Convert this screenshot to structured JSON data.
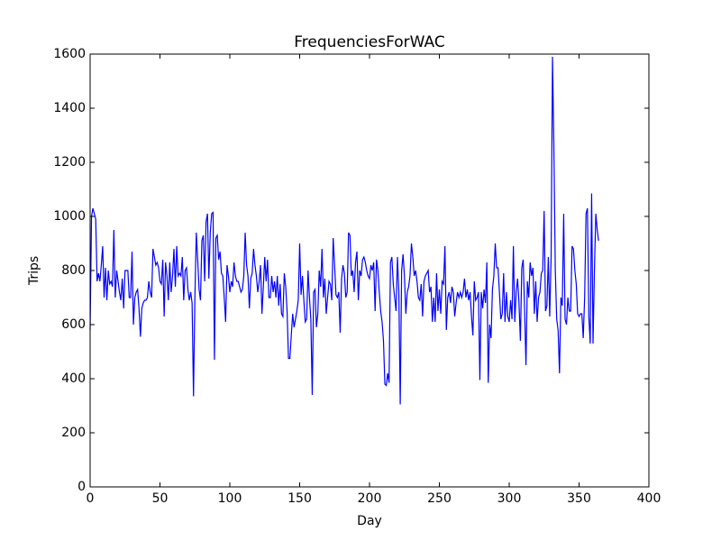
{
  "chart_data": {
    "type": "line",
    "title": "FrequenciesForWAC",
    "x_label": "Day",
    "y_label": "Trips",
    "xlim": [
      0,
      400
    ],
    "xticks": [
      0,
      50,
      100,
      150,
      200,
      250,
      300,
      350,
      400
    ],
    "ylim": [
      0,
      1600
    ],
    "yticks": [
      0,
      200,
      400,
      600,
      800,
      1000,
      1200,
      1400,
      1600
    ],
    "grid": false,
    "x": [
      0,
      1,
      2,
      3,
      4,
      5,
      6,
      7,
      8,
      9,
      10,
      11,
      12,
      13,
      14,
      15,
      16,
      17,
      18,
      19,
      20,
      21,
      22,
      23,
      24,
      25,
      26,
      27,
      28,
      29,
      30,
      31,
      32,
      33,
      34,
      35,
      36,
      37,
      38,
      39,
      40,
      41,
      42,
      43,
      44,
      45,
      46,
      47,
      48,
      49,
      50,
      51,
      52,
      53,
      54,
      55,
      56,
      57,
      58,
      59,
      60,
      61,
      62,
      63,
      64,
      65,
      66,
      67,
      68,
      69,
      70,
      71,
      72,
      73,
      74,
      75,
      76,
      77,
      78,
      79,
      80,
      81,
      82,
      83,
      84,
      85,
      86,
      87,
      88,
      89,
      90,
      91,
      92,
      93,
      94,
      95,
      96,
      97,
      98,
      99,
      100,
      101,
      102,
      103,
      104,
      105,
      106,
      107,
      108,
      109,
      110,
      111,
      112,
      113,
      114,
      115,
      116,
      117,
      118,
      119,
      120,
      121,
      122,
      123,
      124,
      125,
      126,
      127,
      128,
      129,
      130,
      131,
      132,
      133,
      134,
      135,
      136,
      137,
      138,
      139,
      140,
      141,
      142,
      143,
      144,
      145,
      146,
      147,
      148,
      149,
      150,
      151,
      152,
      153,
      154,
      155,
      156,
      157,
      158,
      159,
      160,
      161,
      162,
      163,
      164,
      165,
      166,
      167,
      168,
      169,
      170,
      171,
      172,
      173,
      174,
      175,
      176,
      177,
      178,
      179,
      180,
      181,
      182,
      183,
      184,
      185,
      186,
      187,
      188,
      189,
      190,
      191,
      192,
      193,
      194,
      195,
      196,
      197,
      198,
      199,
      200,
      201,
      202,
      203,
      204,
      205,
      206,
      207,
      208,
      209,
      210,
      211,
      212,
      213,
      214,
      215,
      216,
      217,
      218,
      219,
      220,
      221,
      222,
      223,
      224,
      225,
      226,
      227,
      228,
      229,
      230,
      231,
      232,
      233,
      234,
      235,
      236,
      237,
      238,
      239,
      240,
      241,
      242,
      243,
      244,
      245,
      246,
      247,
      248,
      249,
      250,
      251,
      252,
      253,
      254,
      255,
      256,
      257,
      258,
      259,
      260,
      261,
      262,
      263,
      264,
      265,
      266,
      267,
      268,
      269,
      270,
      271,
      272,
      273,
      274,
      275,
      276,
      277,
      278,
      279,
      280,
      281,
      282,
      283,
      284,
      285,
      286,
      287,
      288,
      289,
      290,
      291,
      292,
      293,
      294,
      295,
      296,
      297,
      298,
      299,
      300,
      301,
      302,
      303,
      304,
      305,
      306,
      307,
      308,
      309,
      310,
      311,
      312,
      313,
      314,
      315,
      316,
      317,
      318,
      319,
      320,
      321,
      322,
      323,
      324,
      325,
      326,
      327,
      328,
      329,
      330,
      331,
      332,
      333,
      334,
      335,
      336,
      337,
      338,
      339,
      340,
      341,
      342,
      343,
      344,
      345,
      346,
      347,
      348,
      349,
      350,
      351,
      352,
      353,
      354,
      355,
      356,
      357,
      358,
      359,
      360,
      361,
      362,
      363,
      364
    ],
    "series": [
      {
        "color": "#0000ff",
        "values": [
          580,
          1000,
          1030,
          1010,
          990,
          760,
          790,
          760,
          820,
          890,
          700,
          810,
          690,
          800,
          750,
          760,
          740,
          950,
          700,
          800,
          760,
          720,
          690,
          770,
          660,
          800,
          800,
          800,
          700,
          700,
          870,
          600,
          700,
          720,
          730,
          660,
          555,
          660,
          680,
          690,
          690,
          700,
          760,
          720,
          700,
          880,
          850,
          820,
          830,
          810,
          760,
          750,
          840,
          630,
          830,
          780,
          690,
          830,
          720,
          780,
          880,
          740,
          890,
          780,
          790,
          780,
          850,
          690,
          800,
          810,
          730,
          690,
          720,
          680,
          335,
          700,
          940,
          840,
          730,
          690,
          910,
          930,
          760,
          980,
          1010,
          770,
          940,
          1010,
          1015,
          470,
          920,
          930,
          840,
          870,
          790,
          780,
          700,
          610,
          820,
          780,
          720,
          760,
          740,
          830,
          780,
          760,
          760,
          740,
          720,
          730,
          780,
          940,
          820,
          780,
          660,
          770,
          790,
          880,
          820,
          780,
          720,
          760,
          820,
          640,
          740,
          850,
          760,
          840,
          700,
          700,
          780,
          720,
          760,
          700,
          780,
          670,
          750,
          640,
          630,
          790,
          740,
          650,
          475,
          475,
          560,
          640,
          590,
          620,
          650,
          690,
          900,
          710,
          780,
          690,
          610,
          620,
          800,
          700,
          620,
          340,
          720,
          730,
          590,
          640,
          800,
          740,
          880,
          700,
          770,
          640,
          700,
          760,
          750,
          690,
          920,
          820,
          710,
          700,
          720,
          570,
          770,
          820,
          790,
          700,
          720,
          940,
          930,
          780,
          800,
          720,
          830,
          870,
          690,
          800,
          780,
          840,
          850,
          830,
          800,
          780,
          770,
          820,
          800,
          830,
          650,
          840,
          800,
          720,
          650,
          610,
          540,
          380,
          375,
          420,
          385,
          830,
          850,
          750,
          700,
          650,
          850,
          720,
          305,
          800,
          860,
          780,
          640,
          720,
          740,
          780,
          900,
          850,
          780,
          800,
          760,
          700,
          690,
          750,
          630,
          760,
          780,
          790,
          800,
          720,
          740,
          610,
          700,
          610,
          790,
          650,
          730,
          640,
          760,
          750,
          890,
          580,
          700,
          720,
          680,
          740,
          720,
          630,
          680,
          720,
          700,
          720,
          700,
          720,
          770,
          700,
          730,
          690,
          720,
          630,
          560,
          760,
          690,
          700,
          720,
          395,
          720,
          660,
          730,
          680,
          830,
          385,
          600,
          550,
          730,
          780,
          900,
          810,
          810,
          720,
          620,
          640,
          790,
          610,
          720,
          630,
          610,
          690,
          620,
          890,
          610,
          720,
          770,
          680,
          540,
          810,
          840,
          660,
          450,
          760,
          700,
          830,
          780,
          810,
          640,
          760,
          610,
          700,
          720,
          790,
          800,
          1020,
          650,
          670,
          850,
          630,
          850,
          1590,
          1250,
          800,
          620,
          580,
          420,
          700,
          670,
          1010,
          620,
          600,
          700,
          650,
          650,
          890,
          880,
          800,
          750,
          640,
          630,
          640,
          640,
          550,
          700,
          1010,
          1030,
          630,
          530,
          1085,
          530,
          800,
          1010,
          950,
          910
        ]
      }
    ]
  }
}
